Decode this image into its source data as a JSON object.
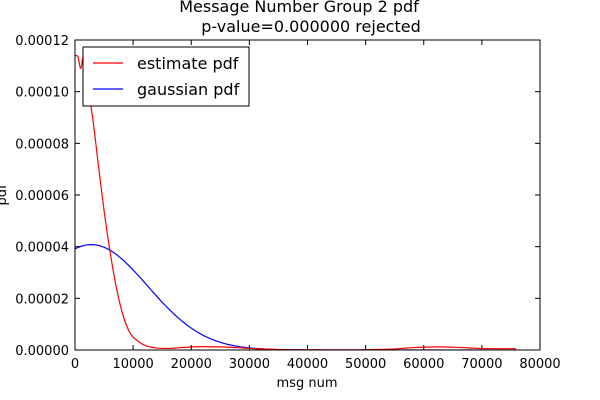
{
  "chart_data": {
    "type": "line",
    "title_lines": [
      "Message Number Group 2 pdf",
      "p-value=0.000000  rejected"
    ],
    "xlabel": "msg num",
    "ylabel": "pdf",
    "xlim": [
      0,
      80000
    ],
    "ylim": [
      0,
      0.00012
    ],
    "xticks": [
      0,
      10000,
      20000,
      30000,
      40000,
      50000,
      60000,
      70000,
      80000
    ],
    "yticks": [
      "0.00000",
      "0.00002",
      "0.00004",
      "0.00006",
      "0.00008",
      "0.00010",
      "0.00012"
    ],
    "ytick_values": [
      0,
      2e-05,
      4e-05,
      6e-05,
      8e-05,
      0.0001,
      0.00012
    ],
    "grid": false,
    "legend": "upper left",
    "series": [
      {
        "name": "estimate pdf",
        "color": "#ff0000",
        "x": [
          0,
          500,
          1000,
          1500,
          2000,
          3000,
          4000,
          5000,
          6000,
          7000,
          8000,
          9000,
          10000,
          12000,
          14000,
          16000,
          18000,
          20000,
          22000,
          25000,
          28000,
          30000,
          35000,
          40000,
          45000,
          50000,
          55000,
          58000,
          62000,
          66000,
          70000,
          75900
        ],
        "y": [
          0.000114,
          0.0001135,
          0.000109,
          0.000114,
          0.000104,
          9.05e-05,
          7.2e-05,
          5.4e-05,
          3.85e-05,
          2.55e-05,
          1.55e-05,
          8.8e-06,
          5e-06,
          1.8e-06,
          8e-07,
          6e-07,
          9e-07,
          1.2e-06,
          1.3e-06,
          1.2e-06,
          9e-07,
          6e-07,
          2e-07,
          1e-07,
          5e-08,
          1e-07,
          4e-07,
          9e-07,
          1.2e-06,
          1e-06,
          6e-07,
          5e-07
        ]
      },
      {
        "name": "gaussian pdf",
        "color": "#0000ff",
        "mean": 2800,
        "std": 9700,
        "peak": 4.08e-05,
        "x_range": [
          0,
          75900
        ]
      }
    ]
  }
}
